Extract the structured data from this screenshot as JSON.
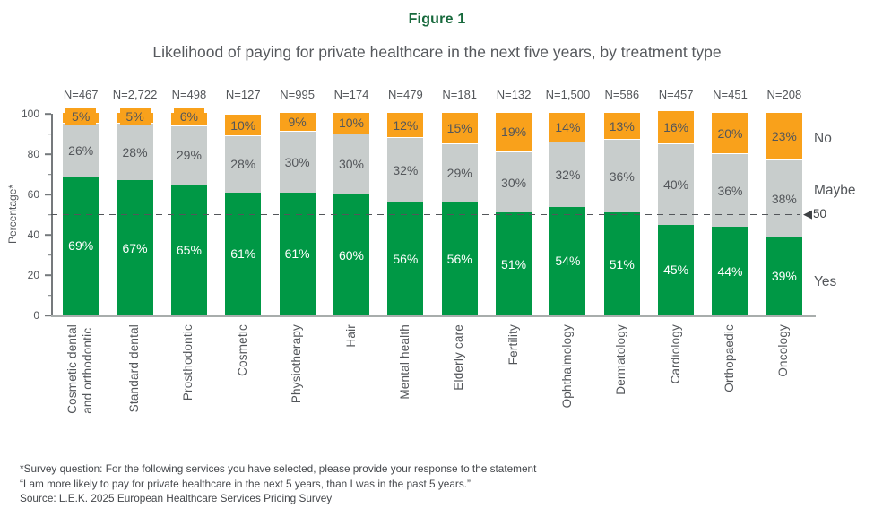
{
  "figure": {
    "label": "Figure 1",
    "title": "Likelihood of paying for private healthcare in the next five years, by treatment type"
  },
  "chart_data": {
    "type": "bar",
    "stacked": true,
    "title": "Likelihood of paying for private healthcare in the next five years, by treatment type",
    "xlabel": "",
    "ylabel": "Percentage*",
    "ylim": [
      0,
      100
    ],
    "yticks": [
      0,
      20,
      40,
      60,
      80,
      100
    ],
    "minor_tick_step": 10,
    "grid": false,
    "legend_position": "right",
    "categories": [
      "Cosmetic dental\nand orthodontic",
      "Standard dental",
      "Prosthodontic",
      "Cosmetic",
      "Physiotherapy",
      "Hair",
      "Mental health",
      "Elderly care",
      "Fertility",
      "Ophthalmology",
      "Dermatology",
      "Cardiology",
      "Orthopaedic",
      "Oncology"
    ],
    "n_labels": [
      "N=467",
      "N=2,722",
      "N=498",
      "N=127",
      "N=995",
      "N=174",
      "N=479",
      "N=181",
      "N=132",
      "N=1,500",
      "N=586",
      "N=457",
      "N=451",
      "N=208"
    ],
    "series": [
      {
        "name": "Yes",
        "values": [
          69,
          67,
          65,
          61,
          61,
          60,
          56,
          56,
          51,
          54,
          51,
          45,
          44,
          39
        ]
      },
      {
        "name": "Maybe",
        "values": [
          26,
          28,
          29,
          28,
          30,
          30,
          32,
          29,
          30,
          32,
          36,
          40,
          36,
          38
        ]
      },
      {
        "name": "No",
        "values": [
          5,
          5,
          6,
          10,
          9,
          10,
          12,
          15,
          19,
          14,
          13,
          16,
          20,
          23
        ]
      }
    ],
    "value_suffix": "%",
    "reference_line": {
      "value": 50,
      "label": "50",
      "arrow": "◀"
    },
    "legend": {
      "no": "No",
      "maybe": "Maybe",
      "yes": "Yes"
    },
    "colors": {
      "yes": "#009845",
      "maybe": "#C8CDCC",
      "no": "#F9A11B",
      "title_green": "#17693C",
      "text": "#53565A"
    }
  },
  "footnote": {
    "line1": "*Survey question: For the following services you have selected, please provide your response to the statement",
    "line2": "“I am more likely to pay for private healthcare in the next 5 years, than I was in the past 5 years.”",
    "line3": "Source: L.E.K. 2025 European Healthcare Services Pricing Survey"
  }
}
